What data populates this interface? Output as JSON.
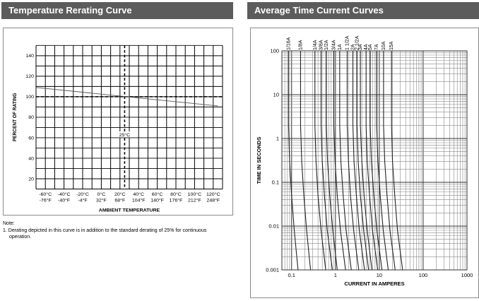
{
  "headers": {
    "left": "Temperature Rerating Curve",
    "right": "Average Time Current Curves"
  },
  "note": {
    "title": "Note:",
    "item": "1.  Derating depicted in this curve is in addition to the standard derating of 25% for continuous operation."
  },
  "chart_data": [
    {
      "type": "line",
      "title": "Temperature Rerating Curve",
      "xlabel": "AMBIENT TEMPERATURE",
      "ylabel": "PERCENT OF RATING",
      "xlim": [
        -70,
        130
      ],
      "ylim": [
        10,
        150
      ],
      "x_ticks": [
        -60,
        -40,
        -20,
        0,
        20,
        40,
        60,
        80,
        100,
        120
      ],
      "x_tick_labels_c": [
        "-60°C",
        "-40°C",
        "-20°C",
        "0°C",
        "20°C",
        "40°C",
        "60°C",
        "80°C",
        "100°C",
        "120°C"
      ],
      "x_tick_labels_f": [
        "-76°F",
        "-40°F",
        "-4°F",
        "32°F",
        "68°F",
        "104°F",
        "140°F",
        "176°F",
        "212°F",
        "248°F"
      ],
      "y_ticks": [
        20,
        40,
        60,
        80,
        100,
        120,
        140
      ],
      "grid": true,
      "series": [
        {
          "x": [
            -70,
            125
          ],
          "y": [
            109,
            91
          ]
        }
      ],
      "reference_lines": {
        "horizontal_y": 100,
        "vertical_x": 25,
        "vertical_label": "25°C"
      }
    },
    {
      "type": "line",
      "title": "Average Time Current Curves",
      "xlabel": "CURRENT IN AMPERES",
      "ylabel": "TIME IN SECONDS",
      "x_scale": "log",
      "y_scale": "log",
      "xlim": [
        0.06,
        1000
      ],
      "ylim": [
        0.001,
        100
      ],
      "x_tick_labels": [
        "0.1",
        "1",
        "10",
        "100",
        "1000"
      ],
      "y_tick_labels": [
        "0.001",
        "0.01",
        "0.1",
        "1",
        "10",
        "100"
      ],
      "grid": true,
      "series": [
        {
          "name": "1/16A",
          "x": [
            0.085,
            0.085,
            0.09,
            0.1,
            0.115,
            0.14
          ],
          "y": [
            100,
            2,
            0.3,
            0.05,
            0.008,
            0.001
          ]
        },
        {
          "name": "1/8A",
          "x": [
            0.16,
            0.16,
            0.17,
            0.19,
            0.22,
            0.27
          ],
          "y": [
            100,
            2,
            0.3,
            0.05,
            0.008,
            0.001
          ]
        },
        {
          "name": "1/4A",
          "x": [
            0.34,
            0.34,
            0.36,
            0.4,
            0.47,
            0.6
          ],
          "y": [
            100,
            2,
            0.3,
            0.05,
            0.008,
            0.001
          ]
        },
        {
          "name": "3/8A",
          "x": [
            0.47,
            0.47,
            0.5,
            0.56,
            0.65,
            0.85
          ],
          "y": [
            100,
            2,
            0.3,
            0.05,
            0.008,
            0.001
          ]
        },
        {
          "name": "1/2A",
          "x": [
            0.62,
            0.62,
            0.66,
            0.74,
            0.87,
            1.1
          ],
          "y": [
            100,
            2,
            0.3,
            0.05,
            0.008,
            0.001
          ]
        },
        {
          "name": "3/4A",
          "x": [
            0.92,
            0.92,
            0.98,
            1.1,
            1.3,
            1.7
          ],
          "y": [
            100,
            2,
            0.3,
            0.05,
            0.008,
            0.001
          ]
        },
        {
          "name": "1A",
          "x": [
            1.25,
            1.25,
            1.33,
            1.5,
            1.75,
            2.3
          ],
          "y": [
            100,
            2,
            0.3,
            0.05,
            0.008,
            0.001
          ]
        },
        {
          "name": "1 1/2A",
          "x": [
            1.85,
            1.85,
            1.98,
            2.2,
            2.6,
            3.4
          ],
          "y": [
            100,
            2,
            0.3,
            0.05,
            0.008,
            0.001
          ]
        },
        {
          "name": "2A",
          "x": [
            2.5,
            2.5,
            2.65,
            3.0,
            3.5,
            4.6
          ],
          "y": [
            100,
            2,
            0.3,
            0.05,
            0.008,
            0.001
          ]
        },
        {
          "name": "2 1/2A",
          "x": [
            3.1,
            3.1,
            3.3,
            3.7,
            4.4,
            5.7
          ],
          "y": [
            100,
            2,
            0.3,
            0.05,
            0.008,
            0.001
          ]
        },
        {
          "name": "3A",
          "x": [
            3.7,
            3.7,
            4.0,
            4.5,
            5.3,
            6.8
          ],
          "y": [
            100,
            2,
            0.3,
            0.05,
            0.008,
            0.001
          ]
        },
        {
          "name": "4A",
          "x": [
            5.0,
            5.0,
            5.3,
            6.0,
            7.0,
            9.2
          ],
          "y": [
            100,
            2,
            0.3,
            0.05,
            0.008,
            0.001
          ]
        },
        {
          "name": "5A",
          "x": [
            6.2,
            6.2,
            6.6,
            7.5,
            8.8,
            11.5
          ],
          "y": [
            100,
            2,
            0.3,
            0.05,
            0.008,
            0.001
          ]
        },
        {
          "name": "7A",
          "x": [
            8.7,
            8.7,
            9.3,
            10.5,
            12.3,
            16
          ],
          "y": [
            100,
            2,
            0.3,
            0.05,
            0.008,
            0.001
          ]
        },
        {
          "name": "10A",
          "x": [
            12.5,
            12.5,
            13.3,
            15,
            17.5,
            23
          ],
          "y": [
            100,
            2,
            0.3,
            0.05,
            0.008,
            0.001
          ]
        },
        {
          "name": "15A",
          "x": [
            19,
            19,
            20,
            22.5,
            26,
            34
          ],
          "y": [
            100,
            2,
            0.3,
            0.05,
            0.008,
            0.001
          ]
        }
      ]
    }
  ]
}
